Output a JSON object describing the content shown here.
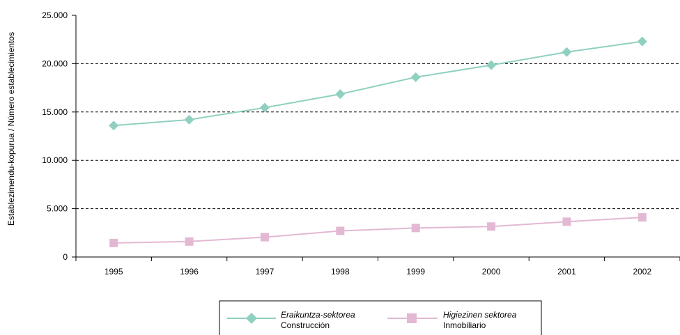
{
  "chart_data": {
    "type": "line",
    "x": [
      "1995",
      "1996",
      "1997",
      "1998",
      "1999",
      "2000",
      "2001",
      "2002"
    ],
    "y_ticks": [
      "0",
      "5.000",
      "10.000",
      "15.000",
      "20.000",
      "25.000"
    ],
    "ylim": [
      0,
      25000
    ],
    "ylabel": "Establezimendu-kopurua / Número establecimientos",
    "grid": "horizontal dashed",
    "legend_position": "bottom-center",
    "series": [
      {
        "name_eu": "Eraikuntza-sektorea",
        "name_es": "Construcción",
        "color": "#8fd0c0",
        "marker": "diamond",
        "values": [
          13600,
          14200,
          15450,
          16850,
          18600,
          19850,
          21200,
          22300
        ]
      },
      {
        "name_eu": "Higiezinen sektorea",
        "name_es": "Inmobiliario",
        "color": "#e3b8d3",
        "marker": "square",
        "values": [
          1450,
          1600,
          2050,
          2700,
          3000,
          3150,
          3650,
          4100
        ]
      }
    ]
  }
}
